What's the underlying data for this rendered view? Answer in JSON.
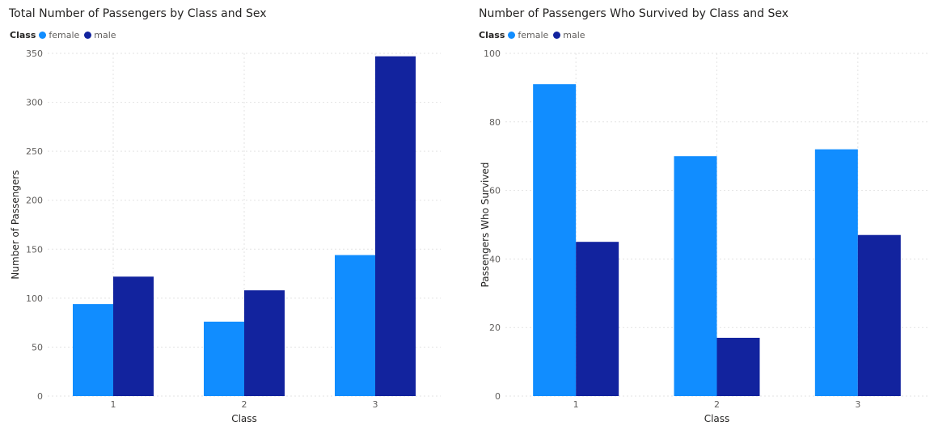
{
  "colors": {
    "female": "#118dff",
    "male": "#12239e",
    "grid": "#e3e3e3",
    "tick_text": "#605e5c",
    "axis_title": "#252423"
  },
  "chart_data": [
    {
      "type": "bar",
      "title": "Total Number of Passengers by Class and Sex",
      "legend_title": "Class",
      "legend_position": "top-left",
      "categories": [
        "1",
        "2",
        "3"
      ],
      "series": [
        {
          "name": "female",
          "values": [
            94,
            76,
            144
          ]
        },
        {
          "name": "male",
          "values": [
            122,
            108,
            347
          ]
        }
      ],
      "xlabel": "Class",
      "ylabel": "Number of Passengers",
      "ylim": [
        0,
        350
      ],
      "yticks": [
        "0",
        "50",
        "100",
        "150",
        "200",
        "250",
        "300",
        "350"
      ],
      "grid": true
    },
    {
      "type": "bar",
      "title": "Number of Passengers Who Survived by Class and Sex",
      "legend_title": "Class",
      "legend_position": "top-left",
      "categories": [
        "1",
        "2",
        "3"
      ],
      "series": [
        {
          "name": "female",
          "values": [
            91,
            70,
            72
          ]
        },
        {
          "name": "male",
          "values": [
            45,
            17,
            47
          ]
        }
      ],
      "xlabel": "Class",
      "ylabel": "Passengers Who Survived",
      "ylim": [
        0,
        100
      ],
      "yticks": [
        "0",
        "20",
        "40",
        "60",
        "80",
        "100"
      ],
      "grid": true
    }
  ]
}
